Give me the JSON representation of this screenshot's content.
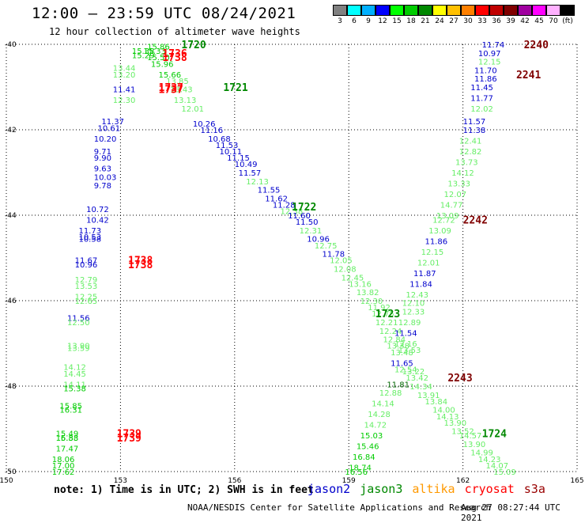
{
  "header": {
    "title": "12:00 – 23:59 UTC 08/24/2021",
    "subtitle": "12 hour collection of altimeter wave heights"
  },
  "colorbar": {
    "colors": [
      "#808080",
      "#00ffff",
      "#00b0ff",
      "#0000ff",
      "#00ff00",
      "#00cc00",
      "#008800",
      "#ffff00",
      "#ffc000",
      "#ff8000",
      "#ff0000",
      "#c00000",
      "#800000",
      "#a000a0",
      "#ff00ff",
      "#ffb0ff",
      "#000000"
    ],
    "labels": [
      "3",
      "6",
      "9",
      "12",
      "15",
      "18",
      "21",
      "24",
      "27",
      "30",
      "33",
      "36",
      "39",
      "42",
      "45",
      "70",
      "(ft)"
    ]
  },
  "footer": {
    "note": "note: 1) Time is in UTC; 2) SWH is in feet",
    "credit": "NOAA/NESDIS Center for Satellite Applications and Research",
    "timestamp": "Aug 27 08:27:44 UTC 2021",
    "legend": [
      {
        "name": "jason2",
        "color": "#0000cc"
      },
      {
        "name": "jason3",
        "color": "#008800"
      },
      {
        "name": "altika",
        "color": "#ff9900"
      },
      {
        "name": "cryosat",
        "color": "#ff0000"
      },
      {
        "name": "s3a",
        "color": "#990000"
      }
    ]
  },
  "chart_data": {
    "type": "scatter",
    "xlim": [
      150,
      165
    ],
    "ylim": [
      -50,
      -40
    ],
    "x_ticks": [
      "150",
      "153",
      "156",
      "159",
      "162",
      "165"
    ],
    "y_ticks": [
      "-40",
      "-42",
      "-44",
      "-46",
      "-48",
      "-50"
    ],
    "x_tick_values": [
      150,
      153,
      156,
      159,
      162,
      165
    ],
    "y_tick_values": [
      -40,
      -42,
      -44,
      -46,
      -48,
      -50
    ],
    "points": [
      {
        "x": 153.7,
        "y": -40.05,
        "v": "15.86",
        "c": "#00cc00"
      },
      {
        "x": 153.3,
        "y": -40.15,
        "v": "15.38",
        "c": "#00cc00"
      },
      {
        "x": 153.6,
        "y": -40.15,
        "v": "15.33",
        "c": "#00cc00"
      },
      {
        "x": 153.3,
        "y": -40.25,
        "v": "15.29",
        "c": "#00cc00"
      },
      {
        "x": 153.7,
        "y": -40.3,
        "v": "15.50",
        "c": "#00cc00"
      },
      {
        "x": 153.8,
        "y": -40.45,
        "v": "15.96",
        "c": "#00cc00"
      },
      {
        "x": 154.0,
        "y": -40.7,
        "v": "15.66",
        "c": "#00cc00"
      },
      {
        "x": 154.2,
        "y": -40.85,
        "v": "13.85",
        "c": "#66ee66"
      },
      {
        "x": 154.3,
        "y": -41.05,
        "v": "13.43",
        "c": "#66ee66"
      },
      {
        "x": 154.4,
        "y": -41.3,
        "v": "13.13",
        "c": "#66ee66"
      },
      {
        "x": 154.6,
        "y": -41.5,
        "v": "12.01",
        "c": "#66ee66"
      },
      {
        "x": 154.9,
        "y": -41.85,
        "v": "10.26",
        "c": "#0000cc"
      },
      {
        "x": 155.1,
        "y": -42.0,
        "v": "11.16",
        "c": "#0000cc"
      },
      {
        "x": 155.3,
        "y": -42.2,
        "v": "10.68",
        "c": "#0000cc"
      },
      {
        "x": 155.5,
        "y": -42.35,
        "v": "11.53",
        "c": "#0000cc"
      },
      {
        "x": 155.6,
        "y": -42.5,
        "v": "10.11",
        "c": "#0000cc"
      },
      {
        "x": 155.8,
        "y": -42.65,
        "v": "11.15",
        "c": "#0000cc"
      },
      {
        "x": 156.0,
        "y": -42.8,
        "v": "10.49",
        "c": "#0000cc"
      },
      {
        "x": 156.1,
        "y": -43.0,
        "v": "11.57",
        "c": "#0000cc"
      },
      {
        "x": 156.3,
        "y": -43.2,
        "v": "12.13",
        "c": "#66ee66"
      },
      {
        "x": 156.6,
        "y": -43.4,
        "v": "11.55",
        "c": "#0000cc"
      },
      {
        "x": 156.8,
        "y": -43.6,
        "v": "11.62",
        "c": "#0000cc"
      },
      {
        "x": 157.0,
        "y": -43.75,
        "v": "11.28",
        "c": "#0000cc"
      },
      {
        "x": 157.2,
        "y": -43.9,
        "v": "12.38",
        "c": "#66ee66"
      },
      {
        "x": 157.4,
        "y": -44.0,
        "v": "11.60",
        "c": "#0000cc"
      },
      {
        "x": 157.6,
        "y": -44.15,
        "v": "11.50",
        "c": "#0000cc"
      },
      {
        "x": 157.7,
        "y": -44.35,
        "v": "12.31",
        "c": "#66ee66"
      },
      {
        "x": 157.9,
        "y": -44.55,
        "v": "10.96",
        "c": "#0000cc"
      },
      {
        "x": 158.1,
        "y": -44.7,
        "v": "12.75",
        "c": "#66ee66"
      },
      {
        "x": 158.3,
        "y": -44.9,
        "v": "11.78",
        "c": "#0000cc"
      },
      {
        "x": 158.5,
        "y": -45.05,
        "v": "12.05",
        "c": "#66ee66"
      },
      {
        "x": 158.6,
        "y": -45.25,
        "v": "12.08",
        "c": "#66ee66"
      },
      {
        "x": 158.8,
        "y": -45.45,
        "v": "12.45",
        "c": "#66ee66"
      },
      {
        "x": 159.0,
        "y": -45.6,
        "v": "13.16",
        "c": "#66ee66"
      },
      {
        "x": 159.2,
        "y": -45.8,
        "v": "13.82",
        "c": "#66ee66"
      },
      {
        "x": 159.3,
        "y": -46.0,
        "v": "12.30",
        "c": "#66ee66"
      },
      {
        "x": 159.5,
        "y": -46.15,
        "v": "11.92",
        "c": "#66ee66"
      },
      {
        "x": 159.6,
        "y": -46.3,
        "v": "12.75",
        "c": "#66ee66"
      },
      {
        "x": 159.7,
        "y": -46.5,
        "v": "12.21",
        "c": "#66ee66"
      },
      {
        "x": 159.8,
        "y": -46.7,
        "v": "12.24",
        "c": "#66ee66"
      },
      {
        "x": 159.9,
        "y": -46.9,
        "v": "12.84",
        "c": "#66ee66"
      },
      {
        "x": 160.0,
        "y": -47.05,
        "v": "13.38",
        "c": "#66ee66"
      },
      {
        "x": 160.1,
        "y": -47.2,
        "v": "13.48",
        "c": "#66ee66"
      },
      {
        "x": 160.3,
        "y": -47.15,
        "v": "13.53",
        "c": "#66ee66"
      },
      {
        "x": 160.1,
        "y": -47.45,
        "v": "11.65",
        "c": "#0000cc"
      },
      {
        "x": 160.2,
        "y": -47.6,
        "v": "12.54",
        "c": "#66ee66"
      },
      {
        "x": 160.4,
        "y": -47.65,
        "v": "13.22",
        "c": "#66ee66"
      },
      {
        "x": 160.5,
        "y": -47.8,
        "v": "13.42",
        "c": "#66ee66"
      },
      {
        "x": 160.6,
        "y": -48.0,
        "v": "14.34",
        "c": "#66ee66"
      },
      {
        "x": 160.8,
        "y": -48.2,
        "v": "13.91",
        "c": "#66ee66"
      },
      {
        "x": 161.0,
        "y": -48.35,
        "v": "13.84",
        "c": "#66ee66"
      },
      {
        "x": 161.2,
        "y": -48.55,
        "v": "14.00",
        "c": "#66ee66"
      },
      {
        "x": 161.3,
        "y": -48.7,
        "v": "14.13",
        "c": "#66ee66"
      },
      {
        "x": 161.5,
        "y": -48.85,
        "v": "13.90",
        "c": "#66ee66"
      },
      {
        "x": 161.7,
        "y": -49.05,
        "v": "13.52",
        "c": "#66ee66"
      },
      {
        "x": 161.9,
        "y": -49.15,
        "v": "14.57",
        "c": "#66ee66"
      },
      {
        "x": 162.0,
        "y": -49.35,
        "v": "13.90",
        "c": "#66ee66"
      },
      {
        "x": 162.2,
        "y": -49.55,
        "v": "14.99",
        "c": "#66ee66"
      },
      {
        "x": 162.4,
        "y": -49.7,
        "v": "14.23",
        "c": "#66ee66"
      },
      {
        "x": 162.6,
        "y": -49.85,
        "v": "14.07",
        "c": "#66ee66"
      },
      {
        "x": 162.8,
        "y": -50.0,
        "v": "15.09",
        "c": "#66ee66"
      },
      {
        "x": 152.8,
        "y": -40.55,
        "v": "13.44",
        "c": "#66ee66"
      },
      {
        "x": 152.8,
        "y": -40.7,
        "v": "13.20",
        "c": "#66ee66"
      },
      {
        "x": 152.8,
        "y": -41.05,
        "v": "11.41",
        "c": "#0000cc"
      },
      {
        "x": 152.8,
        "y": -41.3,
        "v": "12.30",
        "c": "#66ee66"
      },
      {
        "x": 152.5,
        "y": -41.8,
        "v": "11.37",
        "c": "#0000cc"
      },
      {
        "x": 152.4,
        "y": -41.95,
        "v": "10.61",
        "c": "#0000cc"
      },
      {
        "x": 152.3,
        "y": -42.2,
        "v": "10.20",
        "c": "#0000cc"
      },
      {
        "x": 152.3,
        "y": -42.5,
        "v": "9.71",
        "c": "#0000cc"
      },
      {
        "x": 152.3,
        "y": -42.65,
        "v": "9.90",
        "c": "#0000cc"
      },
      {
        "x": 152.3,
        "y": -42.9,
        "v": "9.63",
        "c": "#0000cc"
      },
      {
        "x": 152.3,
        "y": -43.1,
        "v": "10.03",
        "c": "#0000cc"
      },
      {
        "x": 152.3,
        "y": -43.3,
        "v": "9.78",
        "c": "#0000cc"
      },
      {
        "x": 152.1,
        "y": -43.85,
        "v": "10.72",
        "c": "#0000cc"
      },
      {
        "x": 152.1,
        "y": -44.1,
        "v": "10.42",
        "c": "#0000cc"
      },
      {
        "x": 151.9,
        "y": -44.35,
        "v": "11.73",
        "c": "#0000cc"
      },
      {
        "x": 151.9,
        "y": -44.5,
        "v": "10.53",
        "c": "#0000cc"
      },
      {
        "x": 151.9,
        "y": -44.55,
        "v": "10.58",
        "c": "#0000cc"
      },
      {
        "x": 151.8,
        "y": -45.05,
        "v": "11.67",
        "c": "#0000cc"
      },
      {
        "x": 151.8,
        "y": -45.15,
        "v": "10.96",
        "c": "#0000cc"
      },
      {
        "x": 151.8,
        "y": -45.5,
        "v": "12.79",
        "c": "#66ee66"
      },
      {
        "x": 151.8,
        "y": -45.65,
        "v": "13.53",
        "c": "#66ee66"
      },
      {
        "x": 151.8,
        "y": -45.9,
        "v": "12.25",
        "c": "#66ee66"
      },
      {
        "x": 151.8,
        "y": -46.0,
        "v": "12.65",
        "c": "#66ee66"
      },
      {
        "x": 151.6,
        "y": -46.4,
        "v": "11.56",
        "c": "#0000cc"
      },
      {
        "x": 151.6,
        "y": -46.5,
        "v": "12.50",
        "c": "#66ee66"
      },
      {
        "x": 151.6,
        "y": -47.05,
        "v": "13.90",
        "c": "#66ee66"
      },
      {
        "x": 151.6,
        "y": -47.1,
        "v": "13.59",
        "c": "#66ee66"
      },
      {
        "x": 151.5,
        "y": -47.55,
        "v": "14.12",
        "c": "#66ee66"
      },
      {
        "x": 151.5,
        "y": -47.7,
        "v": "14.45",
        "c": "#66ee66"
      },
      {
        "x": 151.5,
        "y": -47.95,
        "v": "14.11",
        "c": "#66ee66"
      },
      {
        "x": 151.5,
        "y": -48.05,
        "v": "15.38",
        "c": "#00cc00"
      },
      {
        "x": 151.4,
        "y": -48.45,
        "v": "15.85",
        "c": "#00cc00"
      },
      {
        "x": 151.4,
        "y": -48.55,
        "v": "16.31",
        "c": "#00cc00"
      },
      {
        "x": 151.3,
        "y": -49.1,
        "v": "15.49",
        "c": "#00cc00"
      },
      {
        "x": 151.3,
        "y": -49.2,
        "v": "15.53",
        "c": "#00cc00"
      },
      {
        "x": 151.3,
        "y": -49.2,
        "v": "16.88",
        "c": "#00cc00"
      },
      {
        "x": 151.3,
        "y": -49.45,
        "v": "17.47",
        "c": "#00cc00"
      },
      {
        "x": 151.2,
        "y": -49.7,
        "v": "18.06",
        "c": "#00cc00"
      },
      {
        "x": 151.2,
        "y": -49.85,
        "v": "17.00",
        "c": "#00cc00"
      },
      {
        "x": 151.2,
        "y": -50.0,
        "v": "17.62",
        "c": "#00cc00"
      },
      {
        "x": 162.5,
        "y": -40.0,
        "v": "11.74",
        "c": "#0000cc"
      },
      {
        "x": 162.4,
        "y": -40.2,
        "v": "10.97",
        "c": "#0000cc"
      },
      {
        "x": 162.4,
        "y": -40.4,
        "v": "12.15",
        "c": "#66ee66"
      },
      {
        "x": 162.3,
        "y": -40.6,
        "v": "11.70",
        "c": "#0000cc"
      },
      {
        "x": 162.3,
        "y": -40.8,
        "v": "11.86",
        "c": "#0000cc"
      },
      {
        "x": 162.2,
        "y": -41.0,
        "v": "11.45",
        "c": "#0000cc"
      },
      {
        "x": 162.2,
        "y": -41.25,
        "v": "11.77",
        "c": "#0000cc"
      },
      {
        "x": 162.2,
        "y": -41.5,
        "v": "12.02",
        "c": "#66ee66"
      },
      {
        "x": 162.0,
        "y": -41.8,
        "v": "11.57",
        "c": "#0000cc"
      },
      {
        "x": 162.0,
        "y": -42.0,
        "v": "11.38",
        "c": "#0000cc"
      },
      {
        "x": 161.9,
        "y": -42.25,
        "v": "12.41",
        "c": "#66ee66"
      },
      {
        "x": 161.9,
        "y": -42.5,
        "v": "12.82",
        "c": "#66ee66"
      },
      {
        "x": 161.8,
        "y": -42.75,
        "v": "13.73",
        "c": "#66ee66"
      },
      {
        "x": 161.7,
        "y": -43.0,
        "v": "14.12",
        "c": "#66ee66"
      },
      {
        "x": 161.6,
        "y": -43.25,
        "v": "13.33",
        "c": "#66ee66"
      },
      {
        "x": 161.5,
        "y": -43.5,
        "v": "12.07",
        "c": "#66ee66"
      },
      {
        "x": 161.4,
        "y": -43.75,
        "v": "14.77",
        "c": "#66ee66"
      },
      {
        "x": 161.3,
        "y": -44.0,
        "v": "13.09",
        "c": "#66ee66"
      },
      {
        "x": 161.2,
        "y": -44.1,
        "v": "12.72",
        "c": "#66ee66"
      },
      {
        "x": 161.1,
        "y": -44.35,
        "v": "13.09",
        "c": "#66ee66"
      },
      {
        "x": 161.0,
        "y": -44.6,
        "v": "11.86",
        "c": "#0000cc"
      },
      {
        "x": 160.9,
        "y": -44.85,
        "v": "12.15",
        "c": "#66ee66"
      },
      {
        "x": 160.8,
        "y": -45.1,
        "v": "12.01",
        "c": "#66ee66"
      },
      {
        "x": 160.7,
        "y": -45.35,
        "v": "11.87",
        "c": "#0000cc"
      },
      {
        "x": 160.6,
        "y": -45.6,
        "v": "11.84",
        "c": "#0000cc"
      },
      {
        "x": 160.5,
        "y": -45.85,
        "v": "12.43",
        "c": "#66ee66"
      },
      {
        "x": 160.4,
        "y": -46.05,
        "v": "12.10",
        "c": "#66ee66"
      },
      {
        "x": 160.4,
        "y": -46.25,
        "v": "12.33",
        "c": "#66ee66"
      },
      {
        "x": 160.3,
        "y": -46.5,
        "v": "12.89",
        "c": "#66ee66"
      },
      {
        "x": 160.2,
        "y": -46.75,
        "v": "11.54",
        "c": "#0000cc"
      },
      {
        "x": 160.2,
        "y": -47.0,
        "v": "12.16",
        "c": "#66ee66"
      },
      {
        "x": 160.0,
        "y": -47.95,
        "v": "11.81",
        "c": "#006600"
      },
      {
        "x": 159.8,
        "y": -48.15,
        "v": "12.88",
        "c": "#66ee66"
      },
      {
        "x": 159.6,
        "y": -48.4,
        "v": "14.14",
        "c": "#66ee66"
      },
      {
        "x": 159.5,
        "y": -48.65,
        "v": "14.28",
        "c": "#66ee66"
      },
      {
        "x": 159.4,
        "y": -48.9,
        "v": "14.72",
        "c": "#66ee66"
      },
      {
        "x": 159.3,
        "y": -49.15,
        "v": "15.03",
        "c": "#00cc00"
      },
      {
        "x": 159.2,
        "y": -49.4,
        "v": "15.46",
        "c": "#00cc00"
      },
      {
        "x": 159.1,
        "y": -49.65,
        "v": "16.84",
        "c": "#00cc00"
      },
      {
        "x": 159.0,
        "y": -49.9,
        "v": "18.74",
        "c": "#00cc00"
      },
      {
        "x": 158.9,
        "y": -50.0,
        "v": "16.56",
        "c": "#00cc00"
      }
    ],
    "pass_labels": [
      {
        "x": 154.6,
        "y": -40.0,
        "text": "1720",
        "c": "#008800"
      },
      {
        "x": 154.1,
        "y": -40.2,
        "text": "1736",
        "c": "#ff0000"
      },
      {
        "x": 154.1,
        "y": -40.3,
        "text": "1738",
        "c": "#ff0000"
      },
      {
        "x": 154.0,
        "y": -41.0,
        "text": "1737",
        "c": "#ff0000"
      },
      {
        "x": 154.0,
        "y": -41.05,
        "text": "1737",
        "c": "#ff0000"
      },
      {
        "x": 155.7,
        "y": -41.0,
        "text": "1721",
        "c": "#008800"
      },
      {
        "x": 157.5,
        "y": -43.8,
        "text": "1722",
        "c": "#008800"
      },
      {
        "x": 153.2,
        "y": -45.05,
        "text": "1738",
        "c": "#ff0000"
      },
      {
        "x": 153.2,
        "y": -45.15,
        "text": "1738",
        "c": "#ff0000"
      },
      {
        "x": 159.7,
        "y": -46.3,
        "text": "1723",
        "c": "#008800"
      },
      {
        "x": 161.6,
        "y": -47.8,
        "text": "2243",
        "c": "#800000"
      },
      {
        "x": 162.5,
        "y": -49.1,
        "text": "1724",
        "c": "#008800"
      },
      {
        "x": 152.9,
        "y": -49.1,
        "text": "1739",
        "c": "#ff0000"
      },
      {
        "x": 152.9,
        "y": -49.2,
        "text": "1739",
        "c": "#ff0000"
      },
      {
        "x": 163.6,
        "y": -40.0,
        "text": "2240",
        "c": "#800000"
      },
      {
        "x": 163.4,
        "y": -40.7,
        "text": "2241",
        "c": "#800000"
      },
      {
        "x": 162.0,
        "y": -44.1,
        "text": "2242",
        "c": "#800000"
      }
    ]
  }
}
